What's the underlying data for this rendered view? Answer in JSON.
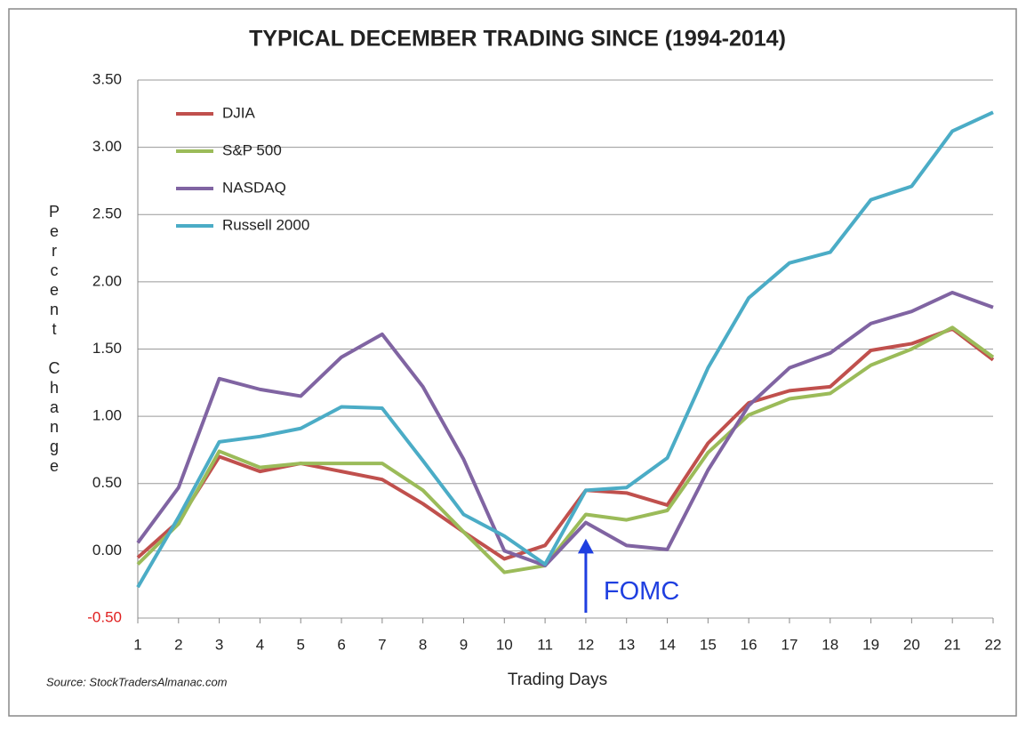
{
  "chart_data": {
    "type": "line",
    "title": "TYPICAL DECEMBER TRADING SINCE (1994-2014)",
    "x_label": "Trading  Days",
    "y_label": "Percent Change",
    "source": "Source: StockTradersAlmanac.com",
    "annotation": {
      "text": "FOMC",
      "x": 12,
      "color": "#1f3fe0"
    },
    "x": [
      1,
      2,
      3,
      4,
      5,
      6,
      7,
      8,
      9,
      10,
      11,
      12,
      13,
      14,
      15,
      16,
      17,
      18,
      19,
      20,
      21,
      22
    ],
    "xlim": [
      1,
      22
    ],
    "xticks": [
      1,
      2,
      3,
      4,
      5,
      6,
      7,
      8,
      9,
      10,
      11,
      12,
      13,
      14,
      15,
      16,
      17,
      18,
      19,
      20,
      21,
      22
    ],
    "ylim": [
      -0.5,
      3.5
    ],
    "yticks": [
      {
        "value": -0.5,
        "label": "-0.50"
      },
      {
        "value": 0,
        "label": "0.00"
      },
      {
        "value": 0.5,
        "label": "0.50"
      },
      {
        "value": 1,
        "label": "1.00"
      },
      {
        "value": 1.5,
        "label": "1.50"
      },
      {
        "value": 2,
        "label": "2.00"
      },
      {
        "value": 2.5,
        "label": "2.50"
      },
      {
        "value": 3,
        "label": "3.00"
      },
      {
        "value": 3.5,
        "label": "3.50"
      }
    ],
    "grid": true,
    "legend": "top-left",
    "series": [
      {
        "name": "DJIA",
        "color": "#c0504d",
        "values": [
          -0.05,
          0.22,
          0.7,
          0.59,
          0.65,
          0.59,
          0.53,
          0.35,
          0.14,
          -0.06,
          0.04,
          0.45,
          0.43,
          0.34,
          0.8,
          1.1,
          1.19,
          1.22,
          1.49,
          1.54,
          1.65,
          1.42
        ]
      },
      {
        "name": "S&P 500",
        "color": "#9bbb59",
        "values": [
          -0.1,
          0.2,
          0.74,
          0.62,
          0.65,
          0.65,
          0.65,
          0.45,
          0.14,
          -0.16,
          -0.11,
          0.27,
          0.23,
          0.3,
          0.73,
          1.01,
          1.13,
          1.17,
          1.38,
          1.5,
          1.66,
          1.44
        ]
      },
      {
        "name": "NASDAQ",
        "color": "#8064a2",
        "values": [
          0.06,
          0.47,
          1.28,
          1.2,
          1.15,
          1.44,
          1.61,
          1.22,
          0.68,
          0.0,
          -0.11,
          0.21,
          0.04,
          0.01,
          0.6,
          1.08,
          1.36,
          1.47,
          1.69,
          1.78,
          1.92,
          1.81
        ]
      },
      {
        "name": "Russell 2000",
        "color": "#4bacc6",
        "values": [
          -0.27,
          0.25,
          0.81,
          0.85,
          0.91,
          1.07,
          1.06,
          0.67,
          0.27,
          0.11,
          -0.1,
          0.45,
          0.47,
          0.69,
          1.36,
          1.88,
          2.14,
          2.22,
          2.61,
          2.71,
          3.12,
          3.26
        ]
      }
    ]
  }
}
